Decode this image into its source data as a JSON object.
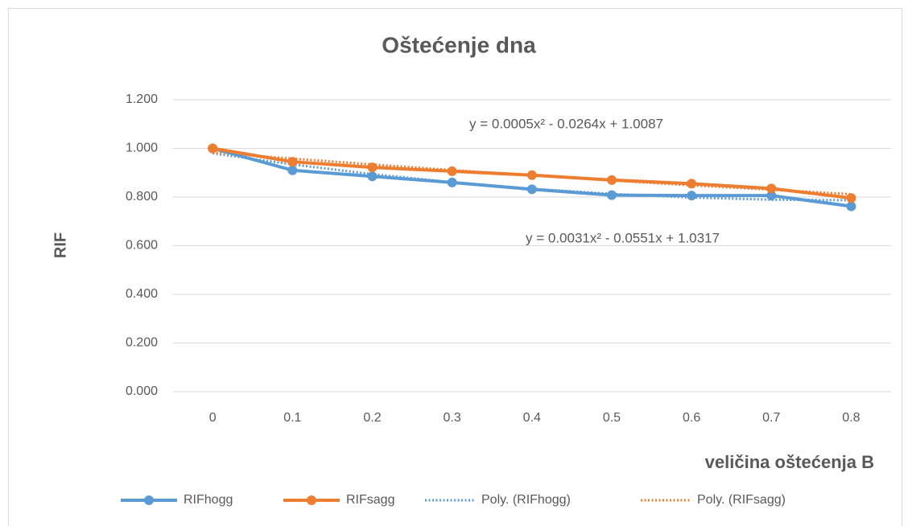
{
  "chart_data": {
    "type": "line",
    "title": "Oštećenje dna",
    "x_label": "veličina oštećenja B",
    "y_label": "RIF",
    "categories": [
      "0",
      "0.1",
      "0.2",
      "0.3",
      "0.4",
      "0.5",
      "0.6",
      "0.7",
      "0.8"
    ],
    "series": [
      {
        "name": "RIFhogg",
        "color": "#5b9bd5",
        "style": "solid",
        "markers": true,
        "values": [
          1.0,
          0.91,
          0.885,
          0.86,
          0.832,
          0.808,
          0.806,
          0.806,
          0.762
        ]
      },
      {
        "name": "RIFsagg",
        "color": "#ed7d31",
        "style": "solid",
        "markers": true,
        "values": [
          1.0,
          0.945,
          0.922,
          0.906,
          0.89,
          0.87,
          0.855,
          0.835,
          0.796
        ]
      },
      {
        "name": "Poly. (RIFhogg)",
        "color": "#5b9bd5",
        "style": "dotted",
        "markers": false,
        "values": [
          0.98,
          0.934,
          0.894,
          0.861,
          0.834,
          0.813,
          0.798,
          0.789,
          0.787
        ]
      },
      {
        "name": "Poly. (RIFsagg)",
        "color": "#ed7d31",
        "style": "dotted",
        "markers": false,
        "values": [
          0.983,
          0.958,
          0.934,
          0.911,
          0.889,
          0.868,
          0.848,
          0.83,
          0.812
        ]
      }
    ],
    "annotations": [
      "y = 0.0005x² - 0.0264x + 1.0087",
      "y = 0.0031x² - 0.0551x + 1.0317"
    ],
    "ylim": [
      0,
      1.2
    ],
    "yticks": [
      {
        "value": 0,
        "label": "0.000"
      },
      {
        "value": 0.2,
        "label": "0.200"
      },
      {
        "value": 0.4,
        "label": "0.400"
      },
      {
        "value": 0.6,
        "label": "0.600"
      },
      {
        "value": 0.8,
        "label": "0.800"
      },
      {
        "value": 1.0,
        "label": "1.000"
      },
      {
        "value": 1.2,
        "label": "1.200"
      }
    ],
    "grid": true,
    "legend": "bottom"
  }
}
